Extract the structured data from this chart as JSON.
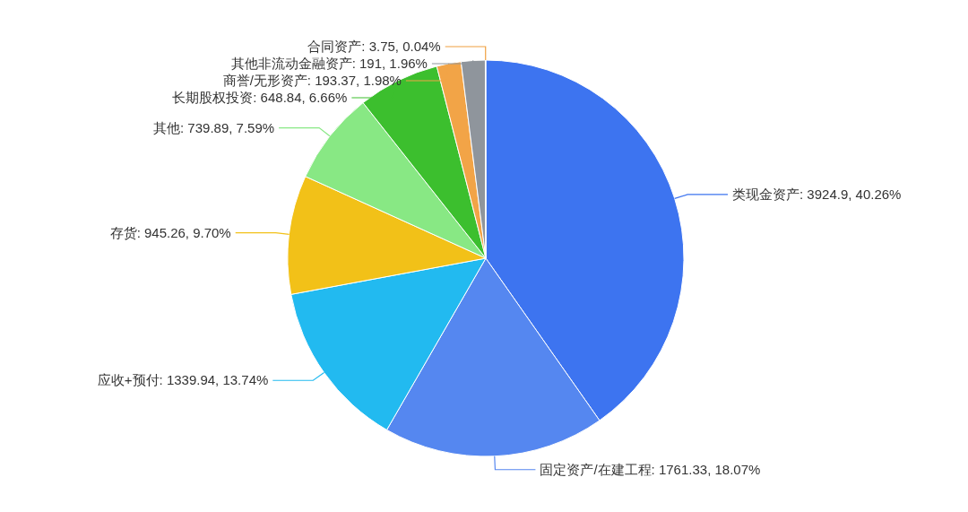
{
  "chart_data": {
    "type": "pie",
    "categories": [
      "类现金资产",
      "固定资产/在建工程",
      "应收+预付",
      "存货",
      "其他",
      "长期股权投资",
      "商誉/无形资产",
      "其他非流动金融资产",
      "合同资产"
    ],
    "values": [
      3924.9,
      1761.33,
      1339.94,
      945.26,
      739.89,
      648.84,
      193.37,
      191,
      3.75
    ],
    "value_labels": [
      "3924.9, 40.26%",
      "1761.33, 18.07%",
      "1339.94, 13.74%",
      "945.26, 9.70%",
      "739.89, 7.59%",
      "648.84, 6.66%",
      "193.37, 1.98%",
      "191, 1.96%",
      "3.75, 0.04%"
    ],
    "colors": [
      "#3d74f0",
      "#5587f0",
      "#22baf0",
      "#f2c118",
      "#88e884",
      "#3cbf2e",
      "#f2a447",
      "#8f959c",
      "#f0a040"
    ]
  }
}
